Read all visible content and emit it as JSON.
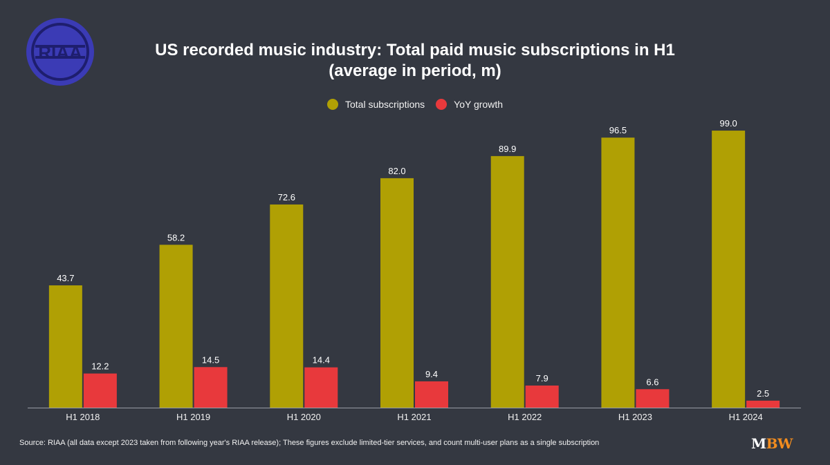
{
  "logo": {
    "text": "RIAA",
    "color": "#3b3bb5"
  },
  "title_line1": "US recorded music industry: Total paid music subscriptions in H1",
  "title_line2": "(average in period, m)",
  "source": "Source: RIAA (all data except 2023 taken from following year's RIAA release); These figures exclude limited-tier services, and count multi-user plans as a single subscription",
  "brand": {
    "m": "M",
    "bw": "BW"
  },
  "colors": {
    "total": "#b0a004",
    "growth": "#e8393c",
    "background": "#343841"
  },
  "chart_data": {
    "type": "bar",
    "title": "US recorded music industry: Total paid music subscriptions in H1 (average in period, m)",
    "categories": [
      "H1 2018",
      "H1 2019",
      "H1 2020",
      "H1 2021",
      "H1 2022",
      "H1 2023",
      "H1 2024"
    ],
    "series": [
      {
        "name": "Total subscriptions",
        "color": "#b0a004",
        "values": [
          43.7,
          58.2,
          72.6,
          82.0,
          89.9,
          96.5,
          99.0
        ]
      },
      {
        "name": "YoY growth",
        "color": "#e8393c",
        "values": [
          12.2,
          14.5,
          14.4,
          9.4,
          7.9,
          6.6,
          2.5
        ]
      }
    ],
    "ylim": [
      0,
      100
    ],
    "grid": false,
    "legend": "top-center",
    "data_labels": true
  }
}
